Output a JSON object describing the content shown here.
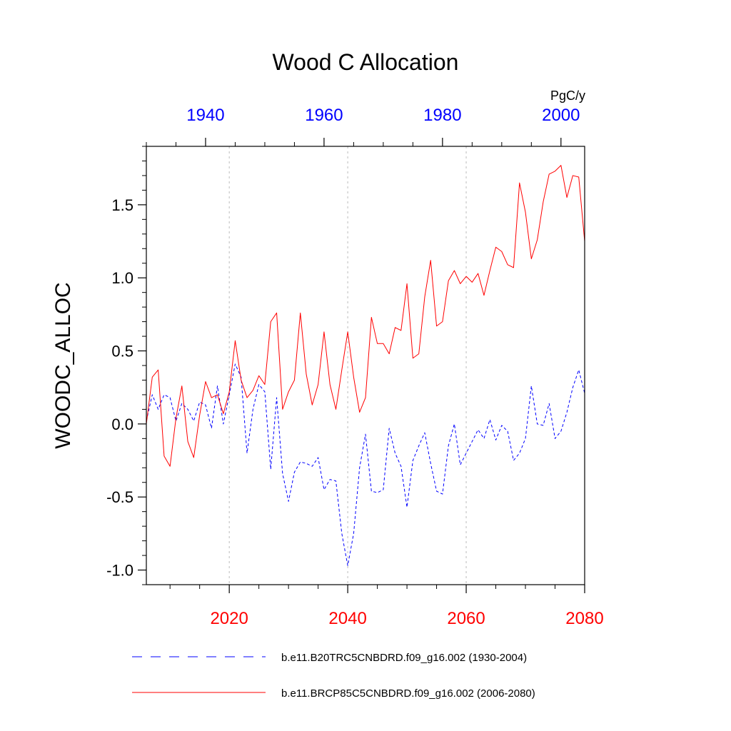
{
  "chart_data": {
    "type": "line",
    "title": "Wood C Allocation",
    "ylabel": "WOODC_ALLOC",
    "units": "PgC/y",
    "ylim": [
      -1.1,
      1.9
    ],
    "yticks": [
      1.5,
      1.0,
      0.5,
      0.0,
      -0.5,
      -1.0
    ],
    "ytick_labels": [
      "1.5",
      "1.0",
      "0.5",
      "0.0",
      "-0.5",
      "-1.0"
    ],
    "x_bottom": {
      "range": [
        2006,
        2080
      ],
      "ticks": [
        2020,
        2040,
        2060,
        2080
      ],
      "tick_labels": [
        "2020",
        "2040",
        "2060",
        "2080"
      ],
      "color": "#ff0000"
    },
    "x_top": {
      "range": [
        1930,
        2004
      ],
      "ticks": [
        1940,
        1960,
        1980,
        2000
      ],
      "tick_labels": [
        "1940",
        "1960",
        "1980",
        "2000"
      ],
      "color": "#0000ff"
    },
    "gridlines_x": [
      2020,
      2040,
      2060
    ],
    "series": [
      {
        "name": "b.e11.B20TRC5CNBDRD.f09_g16.002 (1930-2004)",
        "axis": "top",
        "color": "#0000ff",
        "style": "dashed",
        "x_start": 1930,
        "values": [
          0.02,
          0.2,
          0.1,
          0.2,
          0.18,
          0.02,
          0.14,
          0.1,
          0.02,
          0.15,
          0.13,
          -0.03,
          0.26,
          0.0,
          0.2,
          0.41,
          0.32,
          -0.2,
          0.1,
          0.27,
          0.22,
          -0.31,
          0.18,
          -0.34,
          -0.53,
          -0.33,
          -0.26,
          -0.27,
          -0.29,
          -0.23,
          -0.45,
          -0.38,
          -0.39,
          -0.75,
          -0.97,
          -0.75,
          -0.3,
          -0.07,
          -0.46,
          -0.47,
          -0.45,
          -0.03,
          -0.2,
          -0.29,
          -0.57,
          -0.25,
          -0.15,
          -0.06,
          -0.27,
          -0.46,
          -0.48,
          -0.15,
          0.0,
          -0.28,
          -0.2,
          -0.12,
          -0.04,
          -0.1,
          0.03,
          -0.11,
          -0.01,
          -0.05,
          -0.25,
          -0.2,
          -0.1,
          0.26,
          0.0,
          -0.01,
          0.14,
          -0.1,
          -0.05,
          0.08,
          0.25,
          0.37,
          0.21
        ]
      },
      {
        "name": "b.e11.BRCP85C5CNBDRD.f09_g16.002 (2006-2080)",
        "axis": "bottom",
        "color": "#ff0000",
        "style": "solid",
        "x_start": 2006,
        "values": [
          0.0,
          0.32,
          0.37,
          -0.22,
          -0.29,
          0.04,
          0.26,
          -0.12,
          -0.23,
          0.06,
          0.29,
          0.18,
          0.2,
          0.07,
          0.22,
          0.57,
          0.3,
          0.18,
          0.23,
          0.33,
          0.27,
          0.7,
          0.76,
          0.1,
          0.22,
          0.3,
          0.76,
          0.34,
          0.13,
          0.27,
          0.63,
          0.27,
          0.1,
          0.37,
          0.63,
          0.32,
          0.08,
          0.18,
          0.73,
          0.55,
          0.55,
          0.48,
          0.66,
          0.64,
          0.96,
          0.45,
          0.48,
          0.87,
          1.12,
          0.67,
          0.7,
          0.98,
          1.05,
          0.96,
          1.01,
          0.97,
          1.03,
          0.88,
          1.05,
          1.21,
          1.18,
          1.09,
          1.07,
          1.65,
          1.45,
          1.13,
          1.26,
          1.52,
          1.71,
          1.73,
          1.77,
          1.55,
          1.7,
          1.69,
          1.25
        ]
      }
    ],
    "legend": [
      {
        "label": "b.e11.B20TRC5CNBDRD.f09_g16.002 (1930-2004)",
        "color": "#0000ff",
        "style": "dashed"
      },
      {
        "label": "b.e11.BRCP85C5CNBDRD.f09_g16.002 (2006-2080)",
        "color": "#ff0000",
        "style": "solid"
      }
    ]
  }
}
